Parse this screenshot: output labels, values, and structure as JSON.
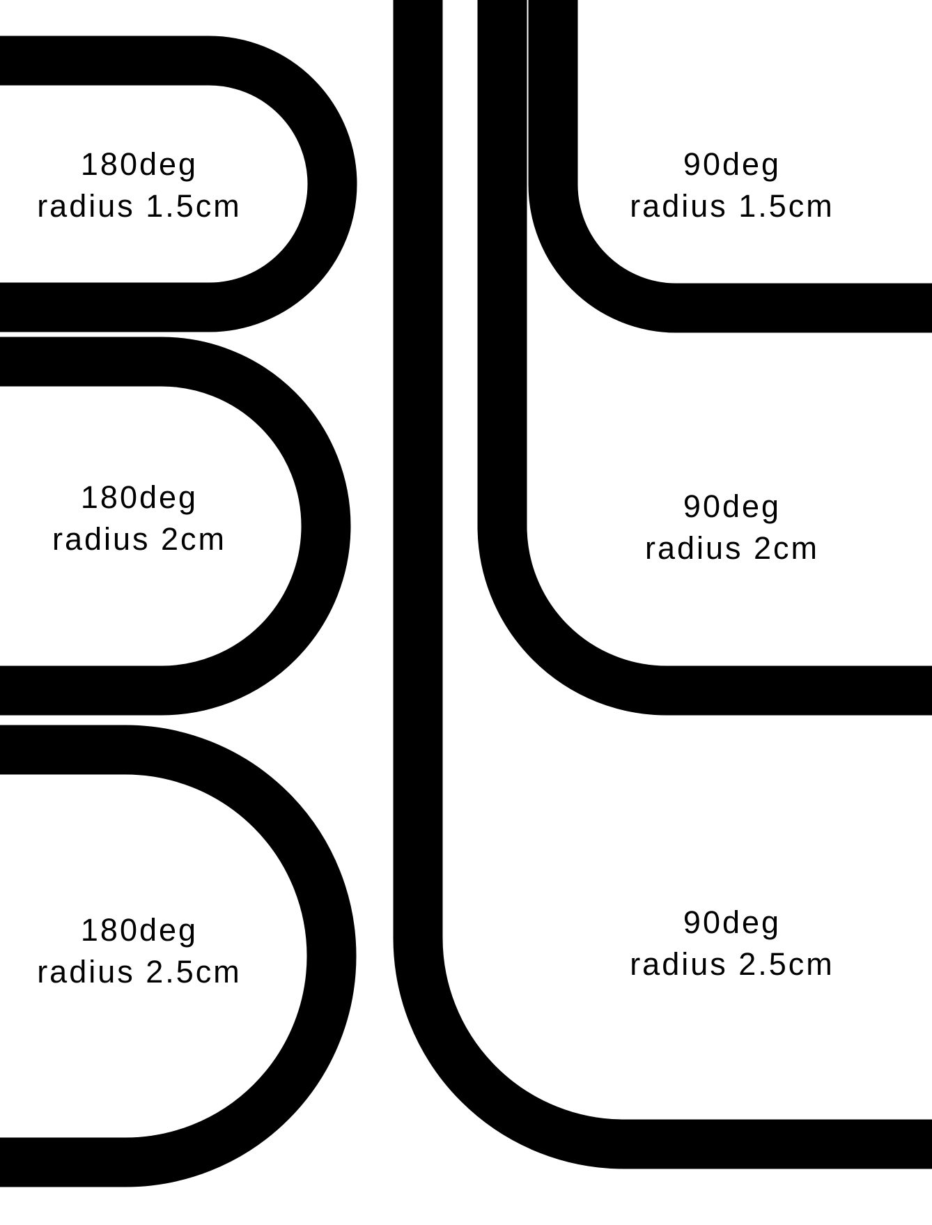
{
  "colors": {
    "track": "#000000",
    "background": "#ffffff"
  },
  "tracks": [
    {
      "id": "left-180-1-5",
      "angle": "180deg",
      "radius": "radius 1.5cm"
    },
    {
      "id": "left-180-2",
      "angle": "180deg",
      "radius": "radius 2cm"
    },
    {
      "id": "left-180-2-5",
      "angle": "180deg",
      "radius": "radius 2.5cm"
    },
    {
      "id": "right-90-1-5",
      "angle": "90deg",
      "radius": "radius 1.5cm"
    },
    {
      "id": "right-90-2",
      "angle": "90deg",
      "radius": "radius 2cm"
    },
    {
      "id": "right-90-2-5",
      "angle": "90deg",
      "radius": "radius 2.5cm"
    }
  ]
}
